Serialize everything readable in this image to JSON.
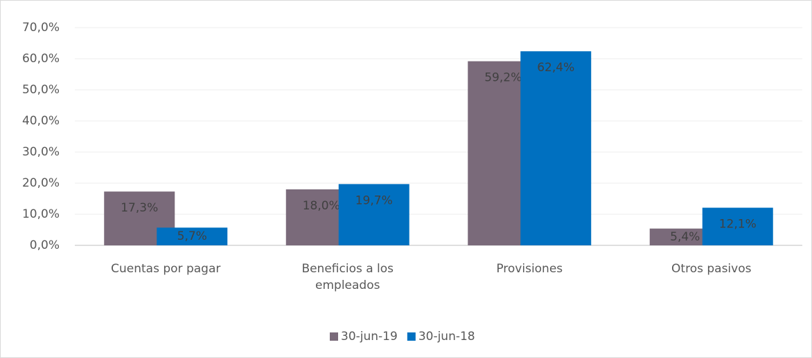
{
  "chart_data": {
    "type": "bar",
    "categories": [
      "Cuentas por pagar",
      "Beneficios a los empleados",
      "Provisiones",
      "Otros pasivos"
    ],
    "series": [
      {
        "name": "30-jun-19",
        "color": "#7a6a7a",
        "values": [
          17.3,
          18.0,
          59.2,
          5.4
        ],
        "value_labels": [
          "17,3%",
          "18,0%",
          "59,2%",
          "5,4%"
        ]
      },
      {
        "name": "30-jun-18",
        "color": "#0070c0",
        "values": [
          5.7,
          19.7,
          62.4,
          12.1
        ],
        "value_labels": [
          "5,7%",
          "19,7%",
          "62,4%",
          "12,1%"
        ]
      }
    ],
    "ylim": [
      0,
      70
    ],
    "yticks": [
      {
        "value": 0,
        "label": "0,0%"
      },
      {
        "value": 10,
        "label": "10,0%"
      },
      {
        "value": 20,
        "label": "20,0%"
      },
      {
        "value": 30,
        "label": "30,0%"
      },
      {
        "value": 40,
        "label": "40,0%"
      },
      {
        "value": 50,
        "label": "50,0%"
      },
      {
        "value": 60,
        "label": "60,0%"
      },
      {
        "value": 70,
        "label": "70,0%"
      }
    ],
    "grid": true,
    "legend": "bottom"
  }
}
